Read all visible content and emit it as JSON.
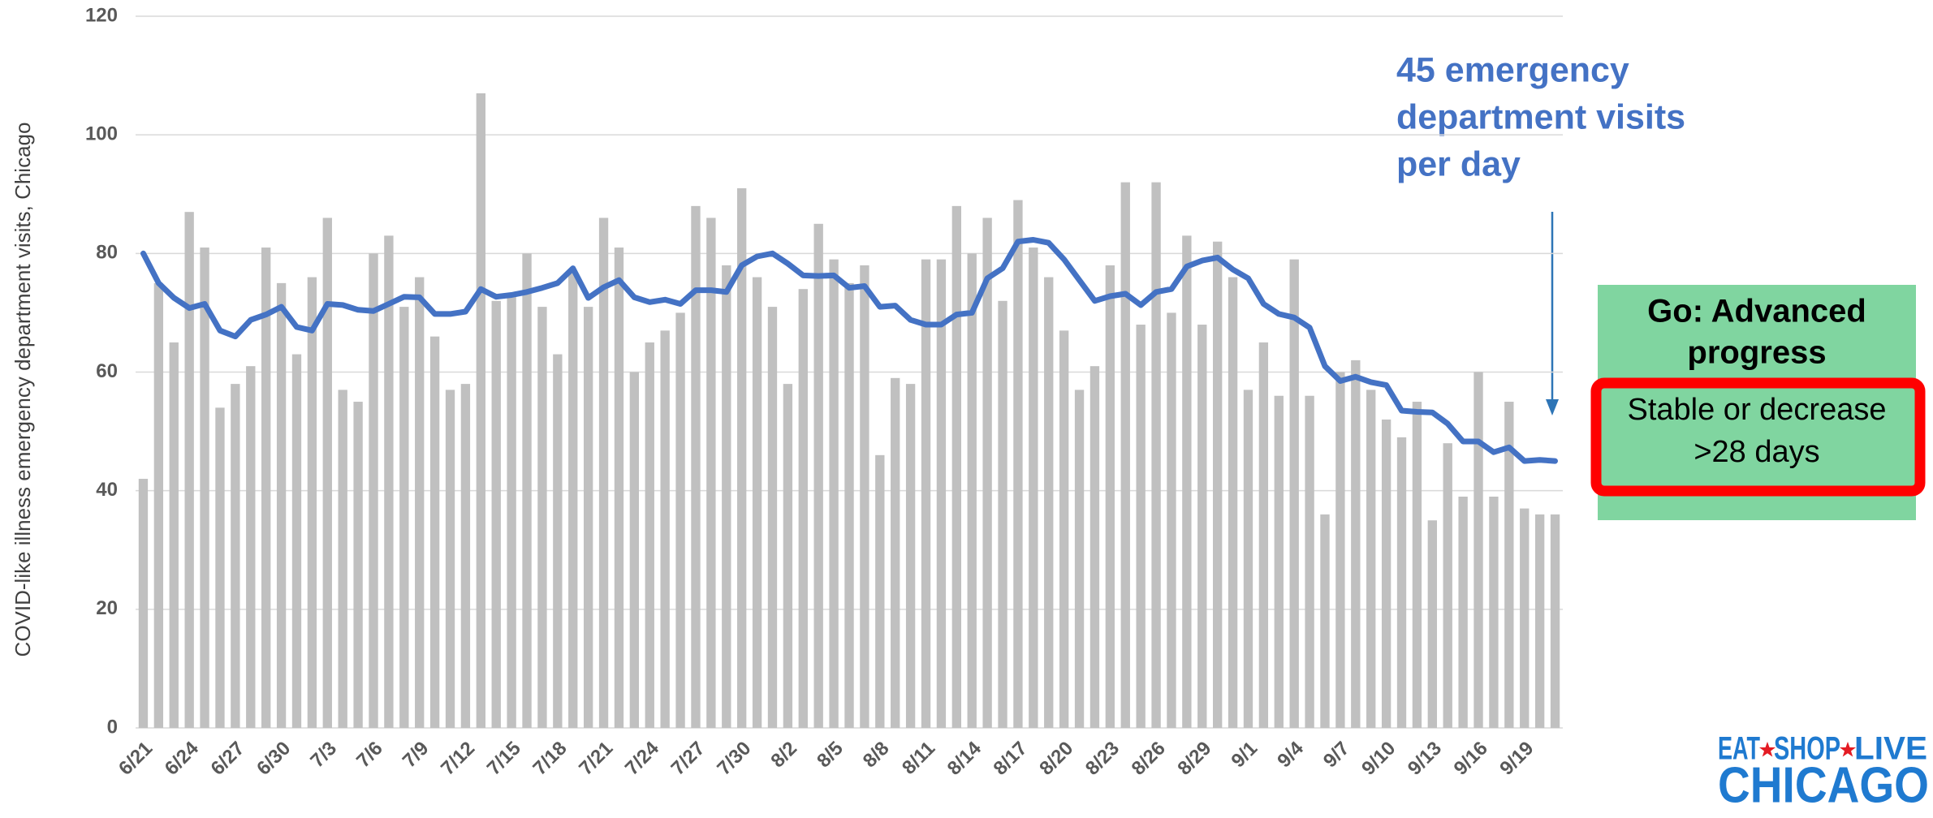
{
  "chart_data": {
    "type": "bar",
    "y_label": "COVID-like illness emergency department visits, Chicago",
    "categories": [
      "6/21",
      null,
      null,
      "6/24",
      null,
      null,
      "6/27",
      null,
      null,
      "6/30",
      null,
      null,
      "7/3",
      null,
      null,
      "7/6",
      null,
      null,
      "7/9",
      null,
      null,
      "7/12",
      null,
      null,
      "7/15",
      null,
      null,
      "7/18",
      null,
      null,
      "7/21",
      null,
      null,
      "7/24",
      null,
      null,
      "7/27",
      null,
      null,
      "7/30",
      null,
      null,
      "8/2",
      null,
      null,
      "8/5",
      null,
      null,
      "8/8",
      null,
      null,
      "8/11",
      null,
      null,
      "8/14",
      null,
      null,
      "8/17",
      null,
      null,
      "8/20",
      null,
      null,
      "8/23",
      null,
      null,
      "8/26",
      null,
      null,
      "8/29",
      null,
      null,
      "9/1",
      null,
      null,
      "9/4",
      null,
      null,
      "9/7",
      null,
      null,
      "9/10",
      null,
      null,
      "9/13",
      null,
      null,
      "9/16",
      null,
      null,
      "9/19",
      null,
      null
    ],
    "series": [
      {
        "type": "bar",
        "color": "#c0c0c0",
        "values": [
          42,
          75,
          65,
          87,
          81,
          54,
          58,
          61,
          81,
          75,
          63,
          76,
          86,
          57,
          55,
          80,
          83,
          71,
          76,
          66,
          57,
          58,
          107,
          72,
          73,
          80,
          71,
          63,
          77,
          71,
          86,
          81,
          60,
          65,
          67,
          70,
          88,
          86,
          78,
          91,
          76,
          71,
          58,
          74,
          85,
          79,
          75,
          78,
          46,
          59,
          58,
          79,
          79,
          88,
          80,
          86,
          72,
          89,
          81,
          76,
          67,
          57,
          61,
          78,
          92,
          68,
          92,
          70,
          83,
          68,
          82,
          76,
          57,
          65,
          56,
          79,
          56,
          36,
          60,
          62,
          57,
          52,
          49,
          55,
          35,
          48,
          39,
          60,
          39,
          55,
          37,
          36,
          36
        ]
      },
      {
        "type": "line",
        "color": "#4472c4",
        "values": [
          80,
          75,
          72.5,
          70.8,
          71.5,
          67,
          66,
          68.8,
          69.7,
          71,
          67.6,
          67,
          71.5,
          71.3,
          70.5,
          70.3,
          71.5,
          72.7,
          72.6,
          69.8,
          69.8,
          70.2,
          74,
          72.7,
          73,
          73.5,
          74.2,
          75,
          77.5,
          72.5,
          74.3,
          75.5,
          72.6,
          71.8,
          72.2,
          71.5,
          73.8,
          73.8,
          73.5,
          78,
          79.5,
          80,
          78.3,
          76.3,
          76.2,
          76.3,
          74.2,
          74.5,
          71,
          71.2,
          68.8,
          68,
          68,
          69.7,
          70,
          75.8,
          77.5,
          82,
          82.3,
          81.8,
          79,
          75.5,
          72,
          72.8,
          73.2,
          71.3,
          73.5,
          74,
          77.8,
          78.8,
          79.3,
          77.3,
          75.8,
          71.5,
          69.8,
          69.2,
          67.5,
          61,
          58.5,
          59.2,
          58.3,
          57.8,
          53.5,
          53.3,
          53.2,
          51.3,
          48.3,
          48.3,
          46.5,
          47.3,
          45,
          45.2,
          45
        ]
      }
    ],
    "ylim": [
      0,
      120
    ],
    "yticks": [
      0,
      20,
      40,
      60,
      80,
      100,
      120
    ],
    "grid": true,
    "annotation": [
      "45 emergency",
      "department visits",
      "per day"
    ],
    "box": {
      "title": [
        "Go: Advanced",
        "progress"
      ],
      "text": [
        "Stable or decrease",
        ">28 days"
      ],
      "color": "#80d5a0",
      "border": "#ff0000"
    },
    "logo": {
      "words": [
        "EAT",
        "SHOP",
        "LIVE"
      ],
      "name": "CHICAGO"
    }
  }
}
